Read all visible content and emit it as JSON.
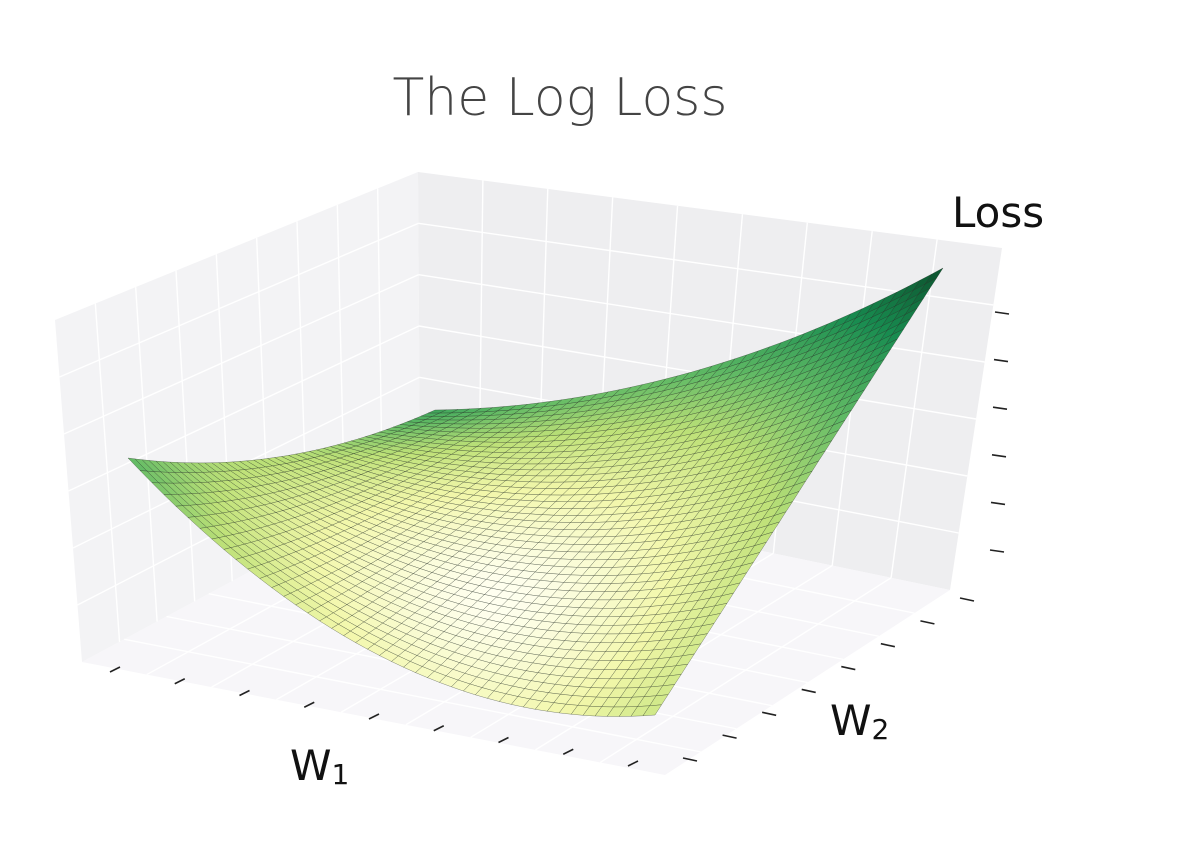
{
  "chart_data": {
    "type": "surface",
    "title": "The Log Loss",
    "xlabel": "W",
    "xlabel_sub": "1",
    "ylabel": "W",
    "ylabel_sub": "2",
    "zlabel": "Loss",
    "grid": true,
    "colormap": "yellow-green",
    "tick_counts": {
      "w1": 9,
      "w2": 8,
      "loss": 6
    }
  }
}
